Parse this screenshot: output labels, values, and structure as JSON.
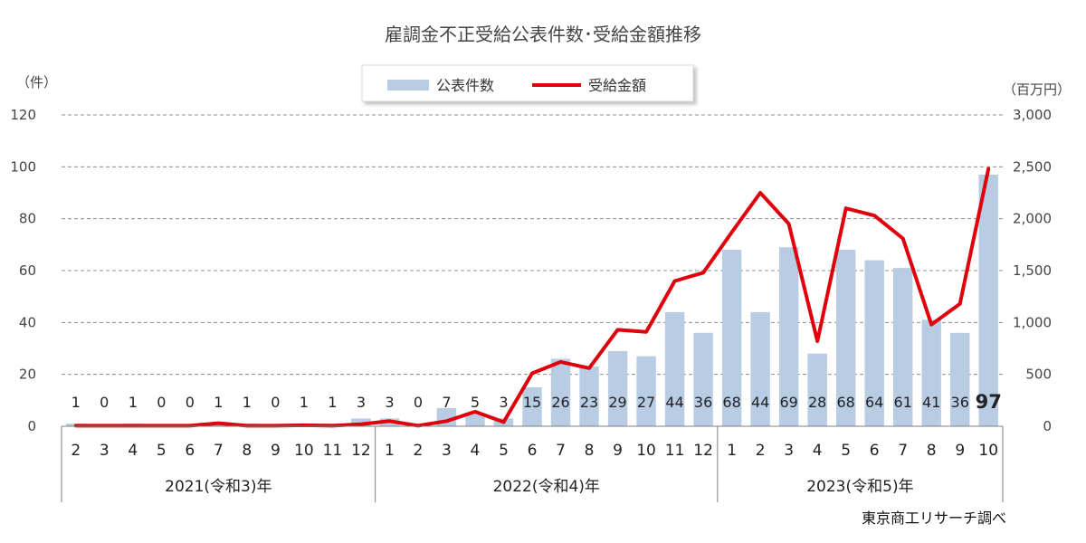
{
  "chart_data": {
    "type": "bar+line",
    "title": "雇調金不正受給公表件数･受給金額推移",
    "left_unit": "（件）",
    "right_unit": "（百万円）",
    "left_ylim": [
      0,
      120
    ],
    "left_ticks": [
      "0",
      "20",
      "40",
      "60",
      "80",
      "100",
      "120"
    ],
    "right_ylim": [
      0,
      3000
    ],
    "right_ticks": [
      "0",
      "500",
      "1,000",
      "1,500",
      "2,000",
      "2,500",
      "3,000"
    ],
    "grid": true,
    "legend_position": "top-center",
    "categories": [
      "2",
      "3",
      "4",
      "5",
      "6",
      "7",
      "8",
      "9",
      "10",
      "11",
      "12",
      "1",
      "2",
      "3",
      "4",
      "5",
      "6",
      "7",
      "8",
      "9",
      "10",
      "11",
      "12",
      "1",
      "2",
      "3",
      "4",
      "5",
      "6",
      "7",
      "8",
      "9",
      "10"
    ],
    "years": [
      {
        "label": "2021(令和3)年",
        "count": 11
      },
      {
        "label": "2022(令和4)年",
        "count": 12
      },
      {
        "label": "2023(令和5)年",
        "count": 10
      }
    ],
    "series": [
      {
        "name": "公表件数",
        "type": "bar",
        "axis": "left",
        "color": "#b8cce4",
        "values": [
          1,
          0,
          1,
          0,
          0,
          1,
          1,
          0,
          1,
          1,
          3,
          3,
          0,
          7,
          5,
          3,
          15,
          26,
          23,
          29,
          27,
          44,
          36,
          68,
          44,
          69,
          28,
          68,
          64,
          61,
          41,
          36,
          97
        ],
        "labels": [
          "1",
          "0",
          "1",
          "0",
          "0",
          "1",
          "1",
          "0",
          "1",
          "1",
          "3",
          "3",
          "0",
          "7",
          "5",
          "3",
          "15",
          "26",
          "23",
          "29",
          "27",
          "44",
          "36",
          "68",
          "44",
          "69",
          "28",
          "68",
          "64",
          "61",
          "41",
          "36",
          "97"
        ]
      },
      {
        "name": "受給金額",
        "type": "line",
        "axis": "right",
        "color": "#e0000b",
        "values": [
          5,
          5,
          5,
          5,
          5,
          30,
          5,
          5,
          10,
          5,
          20,
          50,
          5,
          50,
          140,
          40,
          510,
          620,
          560,
          930,
          910,
          1400,
          1480,
          1870,
          2250,
          1950,
          820,
          2100,
          2030,
          1810,
          980,
          1180,
          2480
        ]
      }
    ],
    "source": "東京商工リサーチ調べ"
  }
}
